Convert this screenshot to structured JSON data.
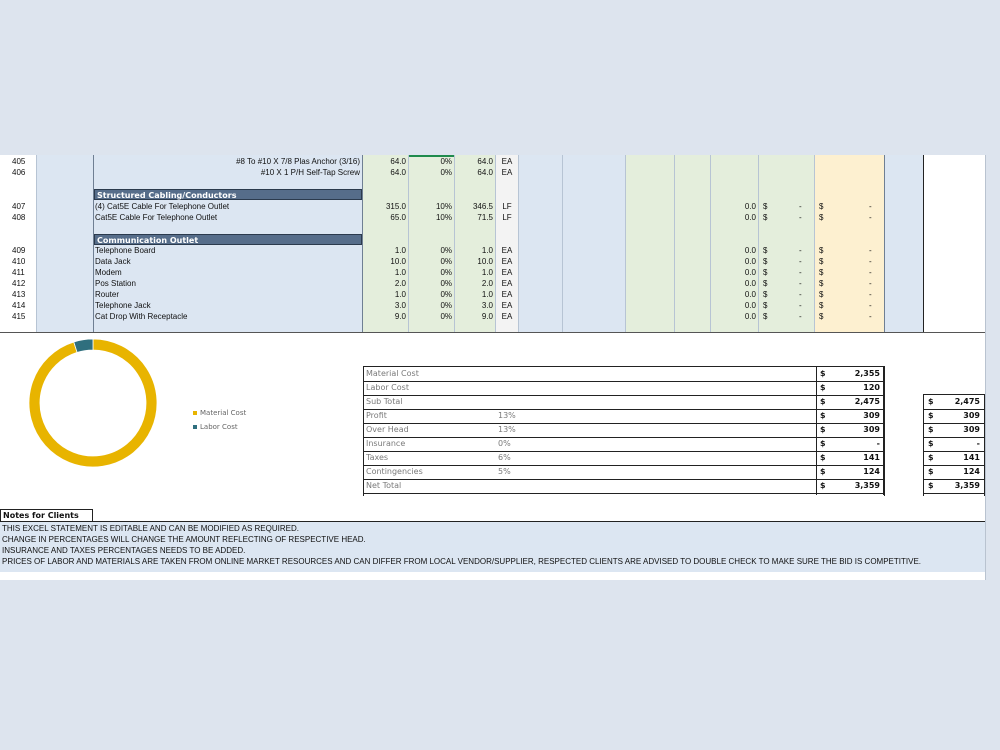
{
  "rows_part1": [
    {
      "num": "405",
      "desc": "#8 To #10 X 7/8 Plas Anchor (3/16)",
      "qty": "64.0",
      "pct": "0%",
      "total": "64.0",
      "unit": "EA"
    },
    {
      "num": "406",
      "desc": "#10 X 1 P/H Self-Tap Screw",
      "qty": "64.0",
      "pct": "0%",
      "total": "64.0",
      "unit": "EA"
    }
  ],
  "section_structured": "Structured Cabling/Conductors",
  "rows_part2": [
    {
      "num": "407",
      "desc": "(4) Cat5E Cable For Telephone Outlet",
      "qty": "315.0",
      "pct": "10%",
      "total": "346.5",
      "unit": "LF",
      "labor": "0.0",
      "cur1": "$",
      "amt1": "-",
      "cur2": "$",
      "amt2": "-"
    },
    {
      "num": "408",
      "desc": "Cat5E Cable For Telephone Outlet",
      "qty": "65.0",
      "pct": "10%",
      "total": "71.5",
      "unit": "LF",
      "labor": "0.0",
      "cur1": "$",
      "amt1": "-",
      "cur2": "$",
      "amt2": "-"
    }
  ],
  "section_communication": "Communication Outlet",
  "rows_part3": [
    {
      "num": "409",
      "desc": "Telephone Board",
      "qty": "1.0",
      "pct": "0%",
      "total": "1.0",
      "unit": "EA",
      "labor": "0.0",
      "cur1": "$",
      "amt1": "-",
      "cur2": "$",
      "amt2": "-"
    },
    {
      "num": "410",
      "desc": "Data Jack",
      "qty": "10.0",
      "pct": "0%",
      "total": "10.0",
      "unit": "EA",
      "labor": "0.0",
      "cur1": "$",
      "amt1": "-",
      "cur2": "$",
      "amt2": "-"
    },
    {
      "num": "411",
      "desc": "Modem",
      "qty": "1.0",
      "pct": "0%",
      "total": "1.0",
      "unit": "EA",
      "labor": "0.0",
      "cur1": "$",
      "amt1": "-",
      "cur2": "$",
      "amt2": "-"
    },
    {
      "num": "412",
      "desc": "Pos Station",
      "qty": "2.0",
      "pct": "0%",
      "total": "2.0",
      "unit": "EA",
      "labor": "0.0",
      "cur1": "$",
      "amt1": "-",
      "cur2": "$",
      "amt2": "-"
    },
    {
      "num": "413",
      "desc": "Router",
      "qty": "1.0",
      "pct": "0%",
      "total": "1.0",
      "unit": "EA",
      "labor": "0.0",
      "cur1": "$",
      "amt1": "-",
      "cur2": "$",
      "amt2": "-"
    },
    {
      "num": "414",
      "desc": "Telephone Jack",
      "qty": "3.0",
      "pct": "0%",
      "total": "3.0",
      "unit": "EA",
      "labor": "0.0",
      "cur1": "$",
      "amt1": "-",
      "cur2": "$",
      "amt2": "-"
    },
    {
      "num": "415",
      "desc": "Cat Drop With Receptacle",
      "qty": "9.0",
      "pct": "0%",
      "total": "9.0",
      "unit": "EA",
      "labor": "0.0",
      "cur1": "$",
      "amt1": "-",
      "cur2": "$",
      "amt2": "-"
    }
  ],
  "summary": [
    {
      "label": "Material Cost",
      "pct": "",
      "cur": "$",
      "value": "2,355"
    },
    {
      "label": "Labor Cost",
      "pct": "",
      "cur": "$",
      "value": "120"
    },
    {
      "label": "Sub Total",
      "pct": "",
      "cur": "$",
      "value": "2,475"
    },
    {
      "label": "Profit",
      "pct": "13%",
      "cur": "$",
      "value": "309"
    },
    {
      "label": "Over Head",
      "pct": "13%",
      "cur": "$",
      "value": "309"
    },
    {
      "label": "Insurance",
      "pct": "0%",
      "cur": "$",
      "value": "-"
    },
    {
      "label": "Taxes",
      "pct": "6%",
      "cur": "$",
      "value": "141"
    },
    {
      "label": "Contingencies",
      "pct": "5%",
      "cur": "$",
      "value": "124"
    },
    {
      "label": "Net Total",
      "pct": "",
      "cur": "$",
      "value": "3,359"
    }
  ],
  "summary2": [
    {
      "cur": "$",
      "value": "2,475"
    },
    {
      "cur": "$",
      "value": "309"
    },
    {
      "cur": "$",
      "value": "309"
    },
    {
      "cur": "$",
      "value": "-"
    },
    {
      "cur": "$",
      "value": "141"
    },
    {
      "cur": "$",
      "value": "124"
    },
    {
      "cur": "$",
      "value": "3,359"
    }
  ],
  "chart_data": {
    "type": "pie",
    "donut": true,
    "categories": [
      "Material Cost",
      "Labor Cost"
    ],
    "values": [
      2355,
      120
    ],
    "colors": [
      "#e8b400",
      "#2f6f7e"
    ],
    "legend": "right"
  },
  "notes": {
    "title": "Notes for Clients",
    "lines": [
      "THIS EXCEL STATEMENT IS EDITABLE AND CAN BE MODIFIED AS REQUIRED.",
      "CHANGE IN PERCENTAGES WILL CHANGE THE AMOUNT REFLECTING OF RESPECTIVE HEAD.",
      "INSURANCE AND TAXES PERCENTAGES NEEDS TO BE ADDED.",
      "PRICES OF LABOR AND MATERIALS ARE TAKEN FROM ONLINE MARKET RESOURCES AND CAN DIFFER FROM LOCAL VENDOR/SUPPLIER, RESPECTED CLIENTS ARE ADVISED TO DOUBLE CHECK TO MAKE SURE THE BID IS COMPETITIVE."
    ]
  }
}
